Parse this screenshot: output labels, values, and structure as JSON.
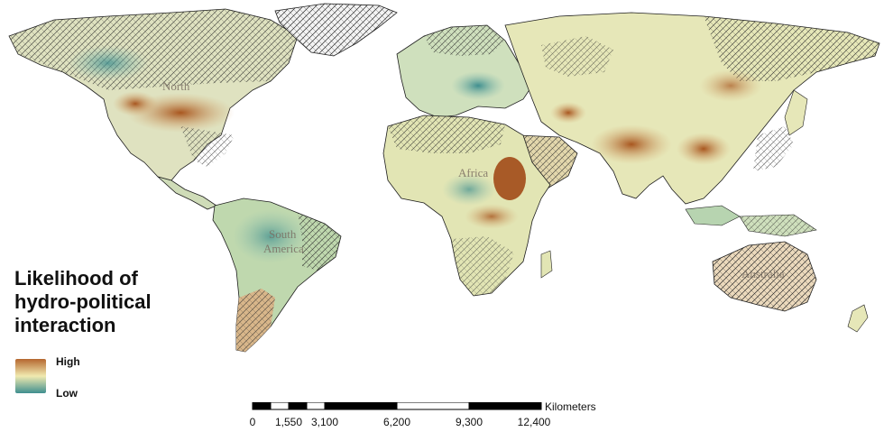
{
  "legend": {
    "title_lines": [
      "Likelihood of",
      "hydro-political",
      "interaction"
    ],
    "high_label": "High",
    "low_label": "Low",
    "color_high": "#b5672f",
    "color_mid": "#f1eab0",
    "color_low": "#3f8f8f"
  },
  "map_labels": {
    "north_america": "North",
    "south_america_1": "South",
    "south_america_2": "America",
    "africa": "Africa",
    "australia": "Australia"
  },
  "scale_bar": {
    "unit": "Kilometers",
    "ticks": [
      "0",
      "1,550",
      "3,100",
      "6,200",
      "9,300",
      "12,400"
    ]
  },
  "colors": {
    "hatch_line": "#2b2b2b",
    "border": "#1e1e1e",
    "land_base": "#e9e4c2"
  }
}
